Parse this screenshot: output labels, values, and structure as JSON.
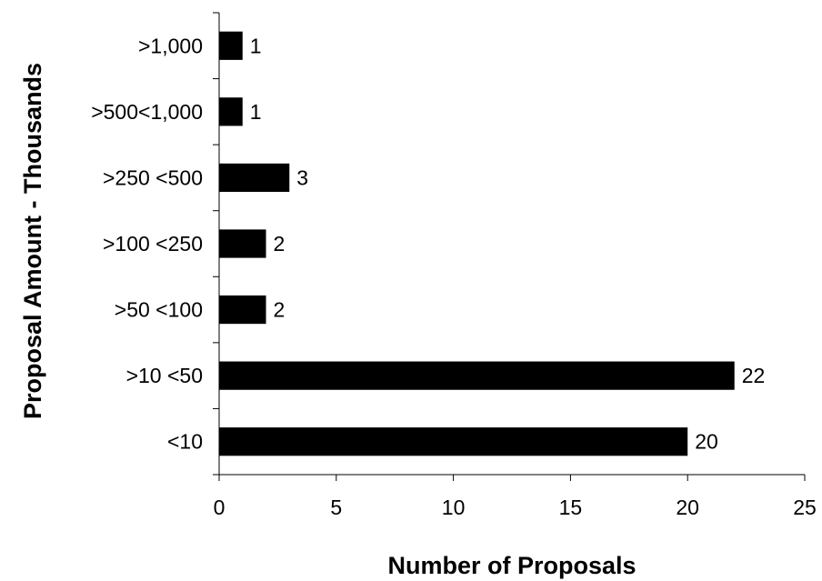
{
  "chart_data": {
    "type": "bar",
    "orientation": "horizontal",
    "categories": [
      ">1,000",
      ">500<1,000",
      ">250 <500",
      ">100 <250",
      ">50 <100",
      ">10 <50",
      "<10"
    ],
    "values": [
      1,
      1,
      3,
      2,
      2,
      22,
      20
    ],
    "title": "",
    "xlabel": "Number of Proposals",
    "ylabel": "Proposal Amount - Thousands",
    "xlim": [
      0,
      25
    ],
    "xticks": [
      "0",
      "5",
      "10",
      "15",
      "20",
      "25"
    ],
    "grid": false,
    "legend": "none",
    "bar_color": "#000000"
  }
}
